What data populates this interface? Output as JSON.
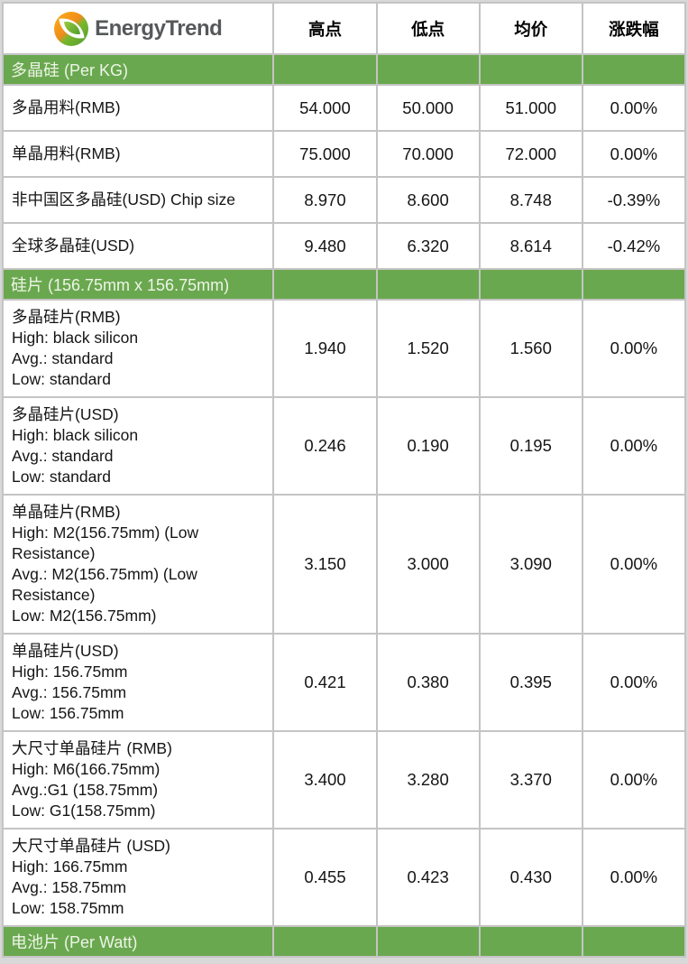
{
  "brand": {
    "name": "EnergyTrend",
    "logo_icon": "energytrend-leaf-logo",
    "logo_orange": "#F28C1B",
    "logo_green": "#4F9D2D",
    "text_color": "#57585A"
  },
  "table": {
    "columns": [
      "高点",
      "低点",
      "均价",
      "涨跌幅"
    ],
    "colors": {
      "section_bg": "#6AA84F",
      "section_text": "#EDF4E7",
      "grid": "#C4C4C4",
      "cell_bg": "#FFFFFF",
      "text": "#111111"
    },
    "sections": [
      {
        "title": "多晶硅 (Per KG)",
        "rows": [
          {
            "label_lines": [
              "多晶用料(RMB)"
            ],
            "high": "54.000",
            "low": "50.000",
            "avg": "51.000",
            "change": "0.00%"
          },
          {
            "label_lines": [
              "单晶用料(RMB)"
            ],
            "high": "75.000",
            "low": "70.000",
            "avg": "72.000",
            "change": "0.00%"
          },
          {
            "label_lines": [
              "非中国区多晶硅(USD) Chip size"
            ],
            "high": "8.970",
            "low": "8.600",
            "avg": "8.748",
            "change": "-0.39%"
          },
          {
            "label_lines": [
              "全球多晶硅(USD)"
            ],
            "high": "9.480",
            "low": "6.320",
            "avg": "8.614",
            "change": "-0.42%"
          }
        ]
      },
      {
        "title": "硅片 (156.75mm x 156.75mm)",
        "rows": [
          {
            "label_lines": [
              "多晶硅片(RMB)",
              "High: black silicon",
              "Avg.: standard",
              "Low: standard"
            ],
            "high": "1.940",
            "low": "1.520",
            "avg": "1.560",
            "change": "0.00%"
          },
          {
            "label_lines": [
              "多晶硅片(USD)",
              "High: black silicon",
              "Avg.: standard",
              "Low: standard"
            ],
            "high": "0.246",
            "low": "0.190",
            "avg": "0.195",
            "change": "0.00%"
          },
          {
            "label_lines": [
              "单晶硅片(RMB)",
              "High: M2(156.75mm) (Low Resistance)",
              "Avg.: M2(156.75mm) (Low Resistance)",
              "Low: M2(156.75mm)"
            ],
            "high": "3.150",
            "low": "3.000",
            "avg": "3.090",
            "change": "0.00%"
          },
          {
            "label_lines": [
              "单晶硅片(USD)",
              "High: 156.75mm",
              "Avg.: 156.75mm",
              "Low: 156.75mm"
            ],
            "high": "0.421",
            "low": "0.380",
            "avg": "0.395",
            "change": "0.00%"
          },
          {
            "label_lines": [
              "大尺寸单晶硅片 (RMB)",
              "High: M6(166.75mm)",
              "Avg.:G1 (158.75mm)",
              "Low: G1(158.75mm)"
            ],
            "high": "3.400",
            "low": "3.280",
            "avg": "3.370",
            "change": "0.00%"
          },
          {
            "label_lines": [
              "大尺寸单晶硅片 (USD)",
              "High: 166.75mm",
              "Avg.: 158.75mm",
              "Low: 158.75mm"
            ],
            "high": "0.455",
            "low": "0.423",
            "avg": "0.430",
            "change": "0.00%"
          }
        ]
      },
      {
        "title": "电池片 (Per Watt)",
        "rows": []
      }
    ]
  }
}
